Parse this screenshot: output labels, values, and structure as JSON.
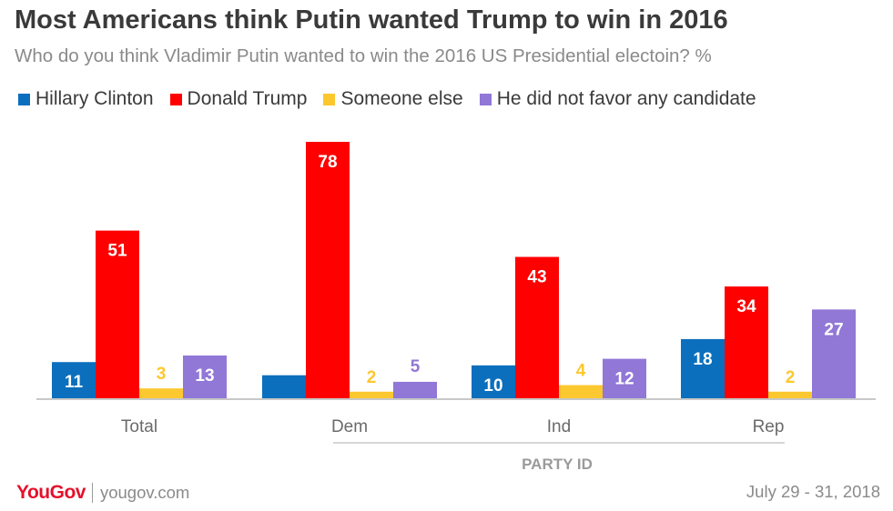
{
  "title": "Most Americans think Putin wanted Trump to win in 2016",
  "subtitle": "Who do you think Vladimir Putin wanted to win the 2016 US Presidential electoin? %",
  "footer": {
    "logo": "YouGov",
    "site": "yougov.com",
    "date": "July 29 - 31, 2018"
  },
  "chart_data": {
    "type": "bar",
    "title": "Most Americans think Putin wanted Trump to win in 2016",
    "subtitle": "Who do you think Vladimir Putin wanted to win the 2016 US Presidential electoin? %",
    "categories": [
      "Total",
      "Dem",
      "Ind",
      "Rep"
    ],
    "group_label": "PARTY ID",
    "ylim": [
      0,
      80
    ],
    "grid": false,
    "legend_position": "top",
    "series": [
      {
        "name": "Hillary Clinton",
        "color": "#0b6fbd",
        "label_color": "#ffffff",
        "values": [
          11,
          7,
          10,
          18
        ]
      },
      {
        "name": "Donald Trump",
        "color": "#ff0000",
        "label_color": "#ffffff",
        "values": [
          51,
          78,
          43,
          34
        ]
      },
      {
        "name": "Someone else",
        "color": "#fcc82f",
        "label_color": "#fcc82f",
        "values": [
          3,
          2,
          4,
          2
        ]
      },
      {
        "name": "He did not favor any candidate",
        "color": "#9177d6",
        "label_color": "#ffffff",
        "label_color_small": "#9177d6",
        "values": [
          13,
          5,
          12,
          27
        ]
      }
    ]
  }
}
